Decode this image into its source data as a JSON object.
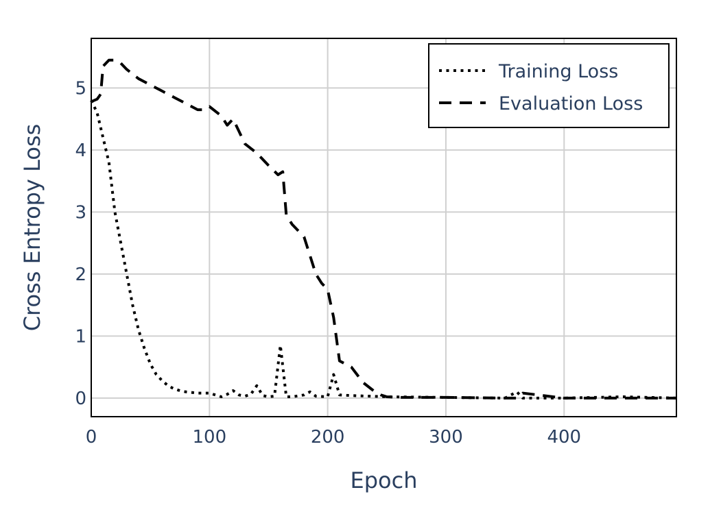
{
  "chart_data": {
    "type": "line",
    "title": "",
    "xlabel": "Epoch",
    "ylabel": "Cross Entropy Loss",
    "xlim": [
      0,
      495
    ],
    "ylim": [
      -0.3,
      5.8
    ],
    "x_ticks": [
      0,
      100,
      200,
      300,
      400
    ],
    "y_ticks": [
      0,
      1,
      2,
      3,
      4,
      5
    ],
    "grid": true,
    "legend_position": "top-right",
    "colors": {
      "text": "#2a3f5f",
      "grid": "#d0d0d0",
      "line": "#000000",
      "frame": "#000000"
    },
    "series": [
      {
        "name": "Training Loss",
        "style": "dotted",
        "x": [
          0,
          5,
          10,
          15,
          20,
          25,
          30,
          35,
          40,
          45,
          50,
          55,
          60,
          65,
          70,
          75,
          80,
          90,
          100,
          105,
          110,
          115,
          120,
          125,
          130,
          135,
          140,
          145,
          150,
          155,
          160,
          165,
          170,
          180,
          185,
          190,
          200,
          205,
          210,
          220,
          250,
          300,
          350,
          360,
          365,
          400,
          450,
          495
        ],
        "y": [
          4.8,
          4.6,
          4.2,
          3.8,
          3.0,
          2.5,
          2.0,
          1.5,
          1.1,
          0.8,
          0.55,
          0.38,
          0.28,
          0.2,
          0.15,
          0.12,
          0.1,
          0.08,
          0.08,
          0.05,
          0.02,
          0.06,
          0.12,
          0.05,
          0.03,
          0.06,
          0.2,
          0.04,
          0.02,
          0.03,
          0.85,
          0.02,
          0.02,
          0.05,
          0.1,
          0.03,
          0.02,
          0.38,
          0.05,
          0.04,
          0.02,
          0.01,
          0.0,
          0.1,
          0.0,
          0.0,
          0.02,
          0.0
        ]
      },
      {
        "name": "Evaluation Loss",
        "style": "dashed",
        "x": [
          0,
          5,
          8,
          10,
          15,
          20,
          25,
          30,
          40,
          50,
          60,
          70,
          80,
          90,
          95,
          100,
          110,
          115,
          120,
          125,
          130,
          140,
          150,
          158,
          162,
          165,
          170,
          180,
          185,
          190,
          195,
          200,
          205,
          210,
          220,
          230,
          240,
          245,
          250,
          260,
          300,
          350,
          360,
          365,
          400,
          450,
          495
        ],
        "y": [
          4.78,
          4.82,
          4.9,
          5.35,
          5.45,
          5.45,
          5.4,
          5.3,
          5.15,
          5.05,
          4.95,
          4.85,
          4.75,
          4.65,
          4.65,
          4.7,
          4.55,
          4.4,
          4.5,
          4.3,
          4.1,
          3.95,
          3.75,
          3.6,
          3.65,
          2.95,
          2.8,
          2.6,
          2.3,
          2.0,
          1.85,
          1.75,
          1.3,
          0.6,
          0.5,
          0.25,
          0.1,
          0.05,
          0.02,
          0.01,
          0.01,
          0.0,
          0.0,
          0.08,
          0.0,
          0.0,
          0.0
        ]
      }
    ]
  }
}
